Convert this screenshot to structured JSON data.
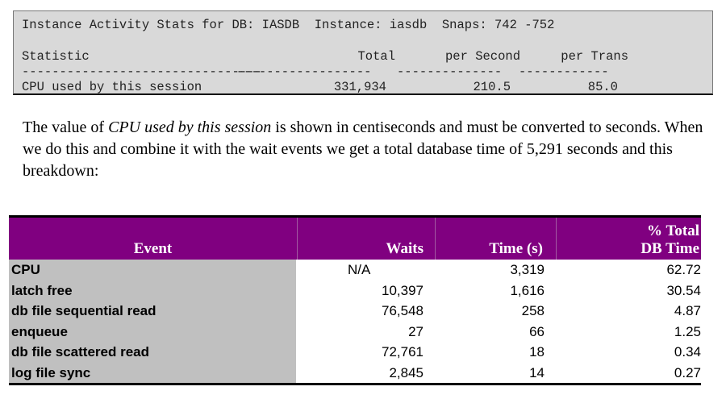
{
  "stats": {
    "header_line": "Instance Activity Stats for DB: IASDB  Instance: iasdb  Snaps: 742 -752",
    "columns": [
      "Statistic",
      "Total",
      "per Second",
      "per Trans"
    ],
    "dashes": [
      "--------------------------------",
      "------------------",
      "--------------",
      "------------"
    ],
    "row": {
      "statistic": "CPU used by this session",
      "total": "331,934",
      "per_second": "210.5",
      "per_trans": "85.0"
    }
  },
  "paragraph": {
    "pre": "The value of ",
    "italic": "CPU used by this session",
    "post": " is shown in centiseconds and must be converted to seconds.  When we do this and combine it with the wait events we get a total database time of 5,291 seconds and this breakdown:"
  },
  "table": {
    "headers": {
      "event": "Event",
      "waits": "Waits",
      "time": "Time (s)",
      "pct_line1": "% Total",
      "pct_line2": "DB Time"
    },
    "colors": {
      "header_bg": "#800080",
      "name_bg": "#c0c0c0"
    },
    "rows": [
      {
        "event": "CPU",
        "waits": "N/A",
        "time": "3,319",
        "pct": "62.72"
      },
      {
        "event": "latch free",
        "waits": "10,397",
        "time": "1,616",
        "pct": "30.54"
      },
      {
        "event": "db file sequential read",
        "waits": "76,548",
        "time": "258",
        "pct": "4.87"
      },
      {
        "event": "enqueue",
        "waits": "27",
        "time": "66",
        "pct": "1.25"
      },
      {
        "event": "db file scattered read",
        "waits": "72,761",
        "time": "18",
        "pct": "0.34"
      },
      {
        "event": "log file sync",
        "waits": "2,845",
        "time": "14",
        "pct": "0.27"
      }
    ]
  }
}
